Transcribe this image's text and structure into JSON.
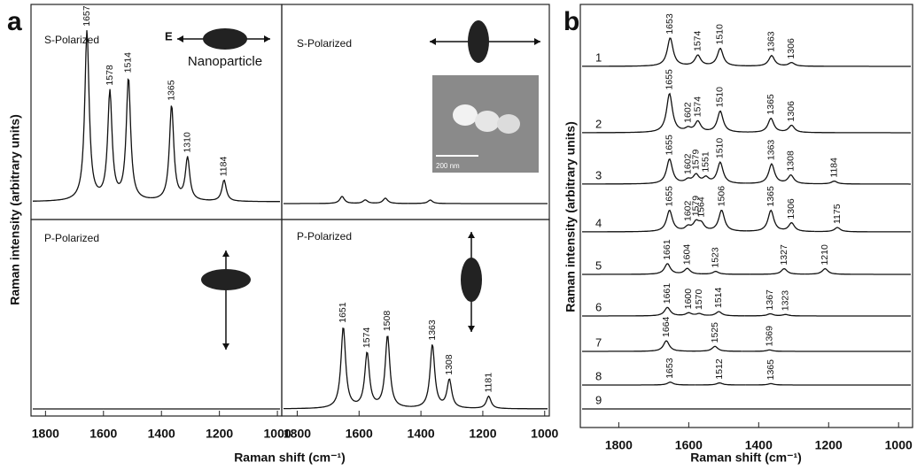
{
  "chart_data": [
    {
      "type": "spectrum",
      "panel_label": "a",
      "ylabel": "Raman intensity (arbitrary units)",
      "title": "S-Polarized",
      "annotations": [
        "E",
        "Nanoparticle"
      ],
      "xlim": [
        1850,
        985
      ],
      "ylim": [
        0,
        100
      ],
      "series": [
        {
          "peaks": [
            1657,
            1578,
            1514,
            1365,
            1310,
            1184
          ],
          "heights": [
            96,
            61,
            69,
            54,
            24,
            12
          ]
        }
      ]
    },
    {
      "type": "spectrum",
      "title": "S-Polarized",
      "inset_scale": "200 nm",
      "show_peak_labels": false,
      "xlim": [
        1850,
        985
      ],
      "ylim": [
        0,
        100
      ],
      "series": [
        {
          "peaks": [
            1655,
            1580,
            1515,
            1370
          ],
          "heights": [
            4,
            2,
            3,
            2
          ]
        }
      ]
    },
    {
      "type": "spectrum",
      "title": "P-Polarized",
      "xlabel": "Raman shift (cm⁻¹)",
      "xlim": [
        1850,
        985
      ],
      "ylim": [
        0,
        100
      ],
      "xticks": [
        1800,
        1600,
        1400,
        1200,
        1000
      ],
      "series": [
        {
          "peaks": [],
          "heights": []
        }
      ]
    },
    {
      "type": "spectrum",
      "title": "P-Polarized",
      "xlim": [
        1850,
        985
      ],
      "ylim": [
        0,
        100
      ],
      "xticks": [
        1800,
        1600,
        1400,
        1200,
        1000
      ],
      "series": [
        {
          "peaks": [
            1651,
            1574,
            1508,
            1363,
            1308,
            1181
          ],
          "heights": [
            46,
            31,
            41,
            36,
            16,
            7
          ]
        }
      ]
    },
    {
      "type": "spectrum",
      "panel_label": "b",
      "ylabel": "Raman intensity (arbitrary units)",
      "xlabel": "Raman shift (cm⁻¹)",
      "xlim": [
        1910,
        960
      ],
      "ylim": [
        0,
        100
      ],
      "xticks": [
        1800,
        1600,
        1400,
        1200,
        1000
      ],
      "series": [
        {
          "name": "1",
          "peaks": [
            1653,
            1574,
            1510,
            1363,
            1306
          ],
          "heights": [
            40,
            15,
            25,
            15,
            5
          ]
        },
        {
          "name": "2",
          "peaks": [
            1655,
            1602,
            1574,
            1510,
            1365,
            1306
          ],
          "heights": [
            55,
            5,
            15,
            30,
            20,
            10
          ]
        },
        {
          "name": "3",
          "peaks": [
            1655,
            1602,
            1579,
            1551,
            1510,
            1363,
            1308,
            1184
          ],
          "heights": [
            35,
            5,
            12,
            8,
            30,
            28,
            12,
            4
          ]
        },
        {
          "name": "4",
          "peaks": [
            1655,
            1602,
            1579,
            1564,
            1506,
            1365,
            1306,
            1175
          ],
          "heights": [
            30,
            6,
            12,
            10,
            30,
            30,
            12,
            6
          ]
        },
        {
          "name": "5",
          "peaks": [
            1661,
            1604,
            1523,
            1327,
            1210
          ],
          "heights": [
            15,
            8,
            4,
            8,
            8
          ]
        },
        {
          "name": "6",
          "peaks": [
            1661,
            1600,
            1570,
            1514,
            1367,
            1323
          ],
          "heights": [
            12,
            4,
            3,
            6,
            3,
            2
          ]
        },
        {
          "name": "7",
          "peaks": [
            1664,
            1525,
            1369
          ],
          "heights": [
            15,
            7,
            2
          ]
        },
        {
          "name": "8",
          "peaks": [
            1653,
            1512,
            1365
          ],
          "heights": [
            4,
            3,
            2
          ]
        },
        {
          "name": "9",
          "peaks": [],
          "heights": []
        }
      ]
    }
  ]
}
